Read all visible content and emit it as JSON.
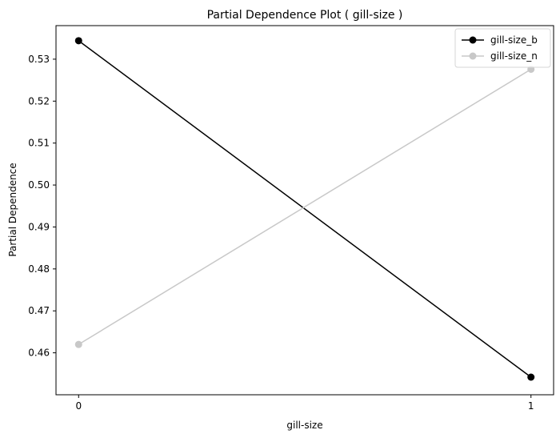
{
  "chart_data": {
    "type": "line",
    "title": "Partial Dependence Plot ( gill-size )",
    "xlabel": "gill-size",
    "ylabel": "Partial Dependence",
    "x": [
      0,
      1
    ],
    "x_ticks": [
      "0",
      "1"
    ],
    "y_ticks": [
      "0.46",
      "0.47",
      "0.48",
      "0.49",
      "0.50",
      "0.51",
      "0.52",
      "0.53"
    ],
    "y_tick_values": [
      0.46,
      0.47,
      0.48,
      0.49,
      0.5,
      0.51,
      0.52,
      0.53
    ],
    "ylim": [
      0.45,
      0.538
    ],
    "xlim": [
      -0.05,
      1.05
    ],
    "grid": false,
    "legend_position": "top-right",
    "series": [
      {
        "name": "gill-size_b",
        "values": [
          0.5344,
          0.4542
        ],
        "color": "#000000"
      },
      {
        "name": "gill-size_n",
        "values": [
          0.462,
          0.5276
        ],
        "color": "#c8c8c8"
      }
    ]
  }
}
